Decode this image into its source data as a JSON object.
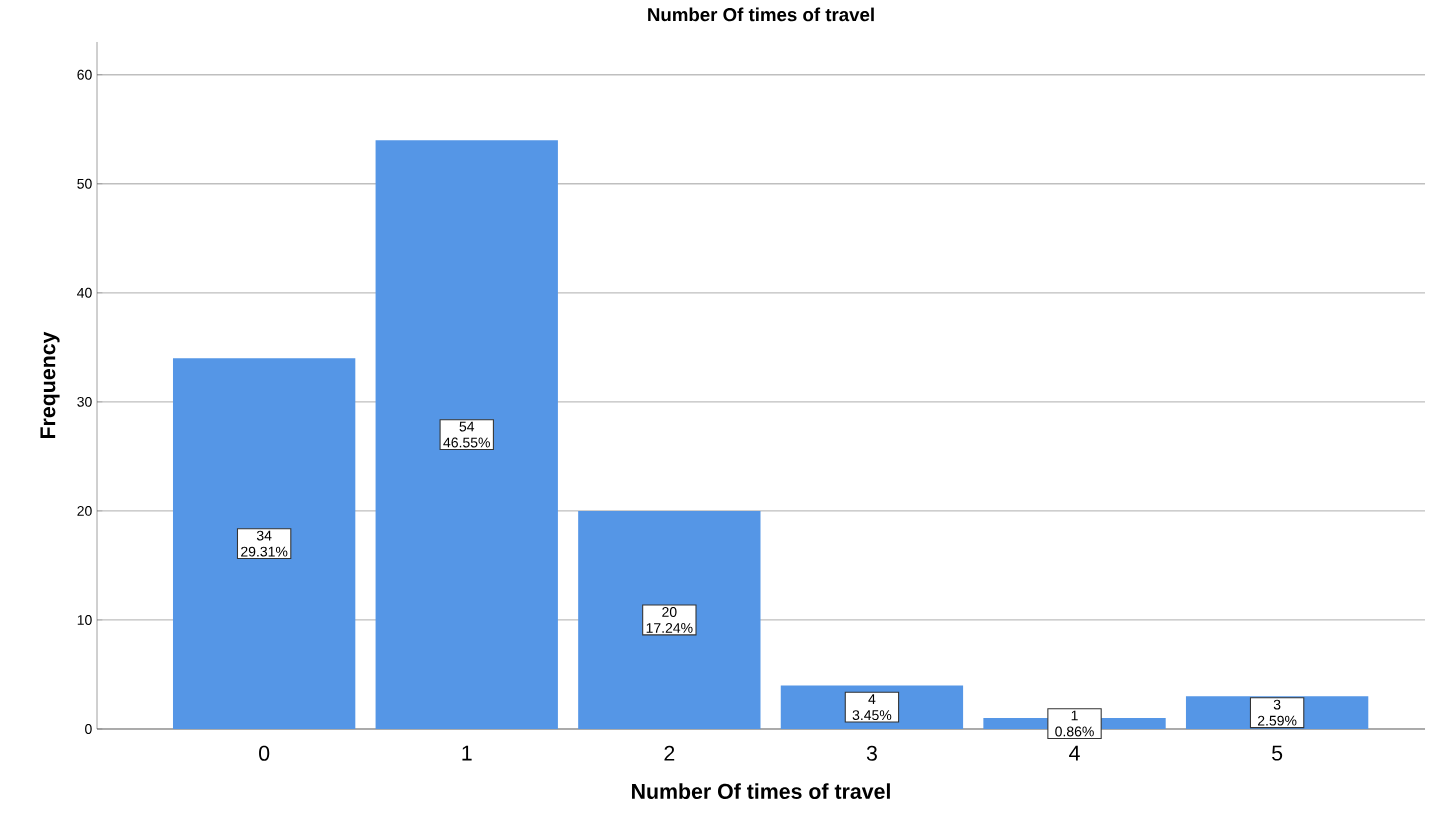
{
  "chart_data": {
    "type": "bar",
    "title": "Number Of times of travel",
    "xlabel": "Number Of times of travel",
    "ylabel": "Frequency",
    "categories": [
      "0",
      "1",
      "2",
      "3",
      "4",
      "5"
    ],
    "values": [
      34,
      54,
      20,
      4,
      1,
      3
    ],
    "color": "#5596e6",
    "value_labels": [
      "34 29.31%",
      "54 46.55%",
      "20 17.24%",
      "4 3.45%",
      "1 0.86%",
      "3 2.59%"
    ],
    "ylim": [
      0,
      63
    ],
    "yticks": [
      0,
      10,
      20,
      30,
      40,
      50,
      60
    ],
    "grid": "y"
  }
}
